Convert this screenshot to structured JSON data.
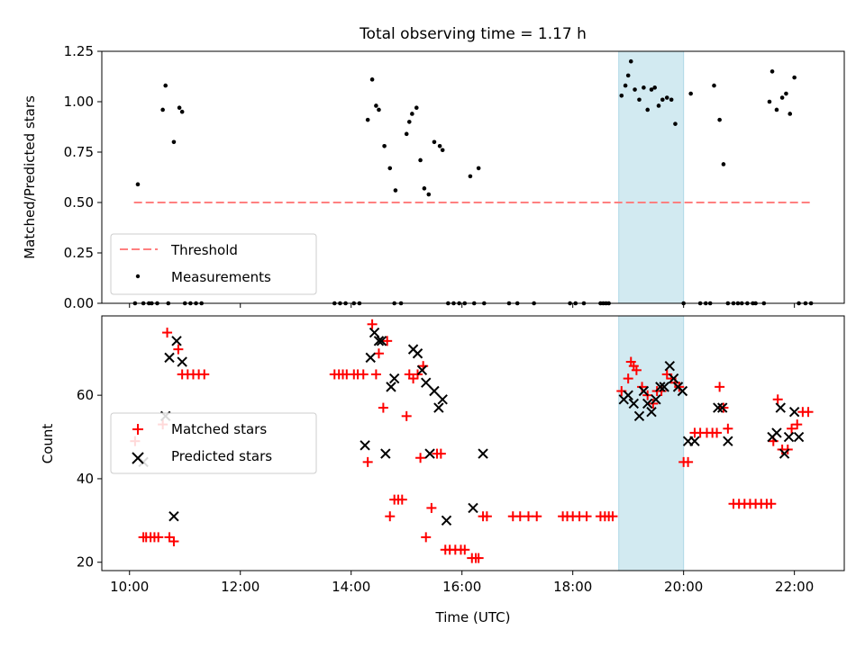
{
  "figure_title": "Total observing time = 1.17 h",
  "colors": {
    "threshold": "#ff8080",
    "measurement": "#000000",
    "matched": "#ff0000",
    "predicted": "#000000",
    "highlight": "#add8e6"
  },
  "chart_data": [
    {
      "type": "scatter",
      "ylabel": "Matched/Predicted stars",
      "x_unit": "hours UTC",
      "xlim": [
        9.5,
        22.9
      ],
      "ylim": [
        0,
        1.25
      ],
      "yticks": [
        "0.00",
        "0.25",
        "0.50",
        "0.75",
        "1.00",
        "1.25"
      ],
      "ytick_values": [
        0,
        0.25,
        0.5,
        0.75,
        1.0,
        1.25
      ],
      "highlight_span": [
        18.83,
        20.0
      ],
      "legend": {
        "placement": "lower left",
        "entries": [
          "Threshold",
          "Measurements"
        ]
      },
      "series": [
        {
          "name": "Threshold",
          "style": "dashed line",
          "x": [
            10.08,
            22.3
          ],
          "y": [
            0.5,
            0.5
          ]
        },
        {
          "name": "Measurements",
          "style": "dots",
          "x": [
            10.1,
            10.15,
            10.25,
            10.35,
            10.4,
            10.5,
            10.6,
            10.65,
            10.7,
            10.8,
            10.9,
            10.95,
            11.0,
            11.1,
            11.2,
            11.3,
            13.7,
            13.8,
            13.9,
            14.05,
            14.15,
            14.3,
            14.38,
            14.45,
            14.5,
            14.6,
            14.7,
            14.78,
            14.8,
            14.9,
            15.0,
            15.05,
            15.1,
            15.18,
            15.25,
            15.32,
            15.4,
            15.5,
            15.6,
            15.65,
            15.75,
            15.85,
            15.95,
            16.05,
            16.15,
            16.22,
            16.3,
            16.4,
            16.85,
            17.0,
            17.3,
            17.95,
            18.05,
            18.2,
            18.5,
            18.55,
            18.6,
            18.65,
            18.88,
            18.95,
            19.0,
            19.05,
            19.12,
            19.2,
            19.28,
            19.35,
            19.42,
            19.48,
            19.55,
            19.62,
            19.7,
            19.78,
            19.85,
            20.0,
            20.13,
            20.3,
            20.4,
            20.48,
            20.55,
            20.65,
            20.72,
            20.8,
            20.9,
            20.98,
            21.05,
            21.15,
            21.25,
            21.3,
            21.45,
            21.55,
            21.6,
            21.68,
            21.78,
            21.85,
            21.92,
            22.0,
            22.08,
            22.2,
            22.3
          ],
          "y": [
            0,
            0.59,
            0,
            0,
            0,
            0,
            0.96,
            1.08,
            0,
            0.8,
            0.97,
            0.95,
            0,
            0,
            0,
            0,
            0,
            0,
            0,
            0,
            0,
            0.91,
            1.11,
            0.98,
            0.96,
            0.78,
            0.67,
            0,
            0.56,
            0,
            0.84,
            0.9,
            0.94,
            0.97,
            0.71,
            0.57,
            0.54,
            0.8,
            0.78,
            0.76,
            0,
            0,
            0,
            0,
            0.63,
            0,
            0.67,
            0,
            0,
            0,
            0,
            0,
            0,
            0,
            0,
            0,
            0,
            0,
            1.03,
            1.08,
            1.13,
            1.2,
            1.06,
            1.01,
            1.07,
            0.96,
            1.06,
            1.07,
            0.98,
            1.01,
            1.02,
            1.01,
            0.89,
            0,
            1.04,
            0,
            0,
            0,
            1.08,
            0.91,
            0.69,
            0,
            0,
            0,
            0,
            0,
            0,
            0,
            0,
            1.0,
            1.15,
            0.96,
            1.02,
            1.04,
            0.94,
            1.12,
            0,
            0,
            0
          ]
        }
      ]
    },
    {
      "type": "scatter",
      "xlabel": "Time (UTC)",
      "ylabel": "Count",
      "x_unit": "hours UTC",
      "xlim": [
        9.5,
        22.9
      ],
      "ylim": [
        18,
        79
      ],
      "xticks": [
        "10:00",
        "12:00",
        "14:00",
        "16:00",
        "18:00",
        "20:00",
        "22:00"
      ],
      "xtick_values": [
        10,
        12,
        14,
        16,
        18,
        20,
        22
      ],
      "yticks": [
        "20",
        "40",
        "60"
      ],
      "ytick_values": [
        20,
        40,
        60
      ],
      "highlight_span": [
        18.83,
        20.0
      ],
      "legend": {
        "placement": "center left",
        "entries": [
          "Matched stars",
          "Predicted stars"
        ]
      },
      "series": [
        {
          "name": "Matched stars",
          "marker": "+",
          "x": [
            10.1,
            10.25,
            10.3,
            10.38,
            10.45,
            10.52,
            10.6,
            10.68,
            10.72,
            10.8,
            10.88,
            10.95,
            11.05,
            11.15,
            11.25,
            11.35,
            13.7,
            13.78,
            13.85,
            13.92,
            14.05,
            14.12,
            14.22,
            14.3,
            14.38,
            14.45,
            14.5,
            14.58,
            14.65,
            14.7,
            14.78,
            14.85,
            14.92,
            15.0,
            15.05,
            15.12,
            15.2,
            15.25,
            15.3,
            15.35,
            15.45,
            15.55,
            15.62,
            15.7,
            15.78,
            15.88,
            15.98,
            16.05,
            16.18,
            16.25,
            16.3,
            16.38,
            16.45,
            16.92,
            17.05,
            17.2,
            17.35,
            17.82,
            17.9,
            18.0,
            18.12,
            18.25,
            18.5,
            18.58,
            18.65,
            18.72,
            18.88,
            19.0,
            19.05,
            19.1,
            19.15,
            19.25,
            19.35,
            19.45,
            19.52,
            19.6,
            19.7,
            19.78,
            19.85,
            19.92,
            20.0,
            20.08,
            20.2,
            20.3,
            20.42,
            20.52,
            20.6,
            20.65,
            20.72,
            20.8,
            20.9,
            21.0,
            21.1,
            21.2,
            21.3,
            21.4,
            21.5,
            21.58,
            21.62,
            21.7,
            21.78,
            21.88,
            21.95,
            22.05,
            22.15,
            22.25
          ],
          "y": [
            49,
            26,
            26,
            26,
            26,
            26,
            53,
            75,
            26,
            25,
            71,
            65,
            65,
            65,
            65,
            65,
            65,
            65,
            65,
            65,
            65,
            65,
            65,
            44,
            77,
            65,
            70,
            57,
            73,
            31,
            35,
            35,
            35,
            55,
            65,
            64,
            65,
            45,
            67,
            26,
            33,
            46,
            46,
            23,
            23,
            23,
            23,
            23,
            21,
            21,
            21,
            31,
            31,
            31,
            31,
            31,
            31,
            31,
            31,
            31,
            31,
            31,
            31,
            31,
            31,
            31,
            61,
            64,
            68,
            67,
            66,
            62,
            60,
            58,
            61,
            61,
            65,
            64,
            63,
            62,
            44,
            44,
            51,
            51,
            51,
            51,
            51,
            62,
            57,
            52,
            34,
            34,
            34,
            34,
            34,
            34,
            34,
            34,
            49,
            59,
            47,
            47,
            52,
            53,
            56,
            56
          ]
        },
        {
          "name": "Predicted stars",
          "marker": "x",
          "x": [
            10.25,
            10.65,
            10.72,
            10.8,
            10.85,
            10.95,
            14.25,
            14.35,
            14.42,
            14.5,
            14.55,
            14.62,
            14.72,
            14.78,
            15.12,
            15.2,
            15.28,
            15.35,
            15.42,
            15.5,
            15.58,
            15.65,
            15.72,
            16.2,
            16.38,
            18.92,
            19.0,
            19.1,
            19.2,
            19.28,
            19.35,
            19.42,
            19.5,
            19.58,
            19.65,
            19.75,
            19.82,
            19.9,
            19.98,
            20.08,
            20.2,
            20.62,
            20.7,
            20.8,
            21.6,
            21.68,
            21.75,
            21.82,
            21.9,
            22.0,
            22.08
          ],
          "y": [
            44,
            55,
            69,
            31,
            73,
            68,
            48,
            69,
            75,
            73,
            73,
            46,
            62,
            64,
            71,
            70,
            66,
            63,
            46,
            61,
            57,
            59,
            30,
            33,
            46,
            59,
            60,
            58,
            55,
            61,
            58,
            56,
            59,
            62,
            62,
            67,
            64,
            62,
            61,
            49,
            49,
            57,
            57,
            49,
            50,
            51,
            57,
            46,
            50,
            56,
            50
          ]
        }
      ]
    }
  ]
}
